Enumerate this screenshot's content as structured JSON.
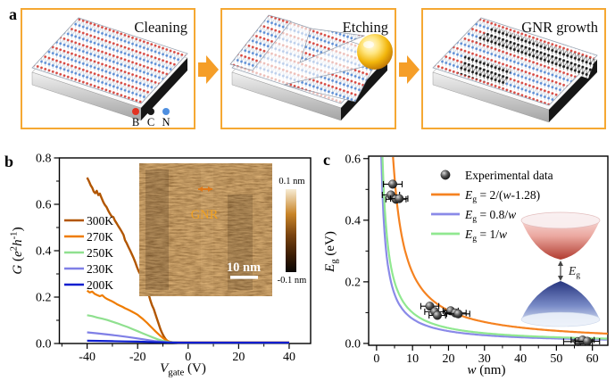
{
  "panel_a": {
    "label": "a",
    "border_color": "#f5a833",
    "arrow_color": "#f59e28",
    "steps": [
      {
        "title": "Cleaning"
      },
      {
        "title": "Etching"
      },
      {
        "title": "GNR growth"
      }
    ],
    "atom_legend": [
      {
        "label": "B",
        "color": "#e23222"
      },
      {
        "label": "C",
        "color": "#181818"
      },
      {
        "label": "N",
        "color": "#4f8fe0"
      }
    ]
  },
  "chart_data": [
    {
      "id": "panel_b",
      "type": "line",
      "panel_label": "b",
      "xlabel_parts": [
        {
          "t": "V",
          "i": 1
        },
        {
          "t": "gate",
          "sub": 1
        },
        {
          "t": " (V)"
        }
      ],
      "ylabel_parts": [
        {
          "t": "G",
          "i": 1
        },
        {
          "t": " ("
        },
        {
          "t": "e",
          "i": 1
        },
        {
          "t": "2",
          "sup": 1
        },
        {
          "t": "h",
          "i": 1
        },
        {
          "t": "-1",
          "sup": 1
        },
        {
          "t": ")"
        }
      ],
      "xlim": [
        -51,
        48.5
      ],
      "ylim": [
        0,
        0.8
      ],
      "xticks": [
        {
          "v": -40,
          "label": "-40"
        },
        {
          "v": -20,
          "label": "-20"
        },
        {
          "v": 0,
          "label": "0"
        },
        {
          "v": 20,
          "label": "20"
        },
        {
          "v": 40,
          "label": "40"
        }
      ],
      "yticks": [
        {
          "v": 0,
          "label": "0.0"
        },
        {
          "v": 0.2,
          "label": "0.2"
        },
        {
          "v": 0.4,
          "label": "0.4"
        },
        {
          "v": 0.6,
          "label": "0.6"
        },
        {
          "v": 0.8,
          "label": "0.8"
        }
      ],
      "x_minor_step": 10,
      "y_minor_step": 0.1,
      "series": [
        {
          "name": "300K",
          "color": "#b25600",
          "width": 2.4,
          "points": [
            [
              -40,
              0.715
            ],
            [
              -39.3,
              0.7
            ],
            [
              -38.6,
              0.682
            ],
            [
              -38,
              0.672
            ],
            [
              -37.4,
              0.655
            ],
            [
              -36.8,
              0.648
            ],
            [
              -36.2,
              0.658
            ],
            [
              -35.6,
              0.64
            ],
            [
              -35,
              0.646
            ],
            [
              -34.3,
              0.628
            ],
            [
              -33.6,
              0.61
            ],
            [
              -33,
              0.598
            ],
            [
              -32.3,
              0.588
            ],
            [
              -31.6,
              0.572
            ],
            [
              -31,
              0.56
            ],
            [
              -30.3,
              0.548
            ],
            [
              -29.6,
              0.545
            ],
            [
              -29,
              0.53
            ],
            [
              -28.3,
              0.518
            ],
            [
              -27.6,
              0.505
            ],
            [
              -27,
              0.495
            ],
            [
              -26.3,
              0.482
            ],
            [
              -25.6,
              0.468
            ],
            [
              -25,
              0.445
            ],
            [
              -24.3,
              0.432
            ],
            [
              -23.6,
              0.415
            ],
            [
              -23,
              0.402
            ],
            [
              -22.3,
              0.385
            ],
            [
              -21.6,
              0.368
            ],
            [
              -21,
              0.352
            ],
            [
              -20.3,
              0.33
            ],
            [
              -19.6,
              0.312
            ],
            [
              -19,
              0.3
            ],
            [
              -18.3,
              0.282
            ],
            [
              -17.6,
              0.262
            ],
            [
              -17,
              0.246
            ],
            [
              -16.3,
              0.23
            ],
            [
              -15.6,
              0.21
            ],
            [
              -15,
              0.188
            ],
            [
              -14.3,
              0.165
            ],
            [
              -13.6,
              0.148
            ],
            [
              -13,
              0.128
            ],
            [
              -12.3,
              0.105
            ],
            [
              -11.6,
              0.082
            ],
            [
              -11,
              0.062
            ],
            [
              -10.3,
              0.045
            ],
            [
              -9.6,
              0.03
            ],
            [
              -9,
              0.02
            ],
            [
              -8.3,
              0.012
            ],
            [
              -7.6,
              0.008
            ],
            [
              -7,
              0.006
            ],
            [
              -6,
              0.005
            ],
            [
              -4,
              0.004
            ],
            [
              0,
              0.004
            ],
            [
              10,
              0.004
            ],
            [
              20,
              0.004
            ],
            [
              30,
              0.004
            ],
            [
              40,
              0.004
            ]
          ]
        },
        {
          "name": "270K",
          "color": "#ef7c00",
          "width": 2.2,
          "points": [
            [
              -40,
              0.228
            ],
            [
              -39,
              0.22
            ],
            [
              -38,
              0.224
            ],
            [
              -37,
              0.214
            ],
            [
              -36,
              0.209
            ],
            [
              -35,
              0.204
            ],
            [
              -34,
              0.208
            ],
            [
              -33,
              0.198
            ],
            [
              -32,
              0.191
            ],
            [
              -31,
              0.186
            ],
            [
              -30,
              0.181
            ],
            [
              -29,
              0.175
            ],
            [
              -28,
              0.168
            ],
            [
              -27,
              0.163
            ],
            [
              -26,
              0.158
            ],
            [
              -25,
              0.152
            ],
            [
              -24,
              0.147
            ],
            [
              -23,
              0.142
            ],
            [
              -22,
              0.136
            ],
            [
              -21,
              0.13
            ],
            [
              -20,
              0.124
            ],
            [
              -19,
              0.115
            ],
            [
              -18,
              0.106
            ],
            [
              -17,
              0.096
            ],
            [
              -16,
              0.086
            ],
            [
              -15,
              0.075
            ],
            [
              -14,
              0.064
            ],
            [
              -13,
              0.053
            ],
            [
              -12,
              0.043
            ],
            [
              -11,
              0.033
            ],
            [
              -10,
              0.024
            ],
            [
              -9,
              0.016
            ],
            [
              -8,
              0.01
            ],
            [
              -7,
              0.007
            ],
            [
              -6,
              0.005
            ],
            [
              -4,
              0.004
            ],
            [
              0,
              0.004
            ],
            [
              20,
              0.004
            ],
            [
              40,
              0.004
            ]
          ]
        },
        {
          "name": "250K",
          "color": "#8fe08f",
          "width": 2.2,
          "points": [
            [
              -40,
              0.122
            ],
            [
              -38,
              0.118
            ],
            [
              -36,
              0.112
            ],
            [
              -34,
              0.107
            ],
            [
              -32,
              0.101
            ],
            [
              -30,
              0.094
            ],
            [
              -28,
              0.087
            ],
            [
              -26,
              0.079
            ],
            [
              -24,
              0.071
            ],
            [
              -22,
              0.062
            ],
            [
              -20,
              0.053
            ],
            [
              -18,
              0.044
            ],
            [
              -16,
              0.035
            ],
            [
              -14,
              0.026
            ],
            [
              -12,
              0.018
            ],
            [
              -10,
              0.011
            ],
            [
              -8,
              0.007
            ],
            [
              -6,
              0.005
            ],
            [
              -4,
              0.004
            ],
            [
              0,
              0.003
            ],
            [
              20,
              0.003
            ],
            [
              40,
              0.003
            ]
          ]
        },
        {
          "name": "230K",
          "color": "#7f7fe6",
          "width": 2.2,
          "points": [
            [
              -40,
              0.048
            ],
            [
              -36,
              0.044
            ],
            [
              -32,
              0.039
            ],
            [
              -28,
              0.034
            ],
            [
              -24,
              0.028
            ],
            [
              -20,
              0.022
            ],
            [
              -16,
              0.015
            ],
            [
              -13,
              0.01
            ],
            [
              -10,
              0.007
            ],
            [
              -8,
              0.005
            ],
            [
              -5,
              0.004
            ],
            [
              0,
              0.003
            ],
            [
              20,
              0.003
            ],
            [
              40,
              0.003
            ]
          ]
        },
        {
          "name": "200K",
          "color": "#0d1ecf",
          "width": 2.2,
          "points": [
            [
              -40,
              0.012
            ],
            [
              -35,
              0.011
            ],
            [
              -30,
              0.01
            ],
            [
              -25,
              0.009
            ],
            [
              -20,
              0.008
            ],
            [
              -15,
              0.006
            ],
            [
              -10,
              0.005
            ],
            [
              -5,
              0.004
            ],
            [
              0,
              0.004
            ],
            [
              20,
              0.004
            ],
            [
              40,
              0.004
            ]
          ]
        }
      ],
      "inset": {
        "gnr_label": "GNR",
        "gnr_color": "#f0a020",
        "scalebar_label": "10 nm",
        "colorbar_top": "0.1 nm",
        "colorbar_bottom": "-0.1 nm"
      }
    },
    {
      "id": "panel_c",
      "type": "scatter",
      "panel_label": "c",
      "xlabel_parts": [
        {
          "t": "w",
          "i": 1
        },
        {
          "t": " (nm)"
        }
      ],
      "ylabel_parts": [
        {
          "t": "E",
          "i": 1
        },
        {
          "t": "g",
          "sub": 1
        },
        {
          "t": " (eV)"
        }
      ],
      "xlim": [
        -2.2,
        64.3
      ],
      "ylim": [
        -0.006,
        0.608
      ],
      "xticks": [
        {
          "v": 0,
          "label": "0"
        },
        {
          "v": 10,
          "label": "10"
        },
        {
          "v": 20,
          "label": "20"
        },
        {
          "v": 30,
          "label": "30"
        },
        {
          "v": 40,
          "label": "40"
        },
        {
          "v": 50,
          "label": "50"
        },
        {
          "v": 60,
          "label": "60"
        }
      ],
      "yticks": [
        {
          "v": 0,
          "label": "0.0"
        },
        {
          "v": 0.2,
          "label": "0.2"
        },
        {
          "v": 0.4,
          "label": "0.4"
        },
        {
          "v": 0.6,
          "label": "0.6"
        }
      ],
      "x_minor_step": 5,
      "y_minor_step": 0.1,
      "points_legend_parts": [
        {
          "t": "Experimental data"
        }
      ],
      "points": [
        [
          4.5,
          0.517,
          2.6
        ],
        [
          4.0,
          0.482,
          2.4
        ],
        [
          5.4,
          0.468,
          2.8
        ],
        [
          6.3,
          0.47,
          2.4
        ],
        [
          14.8,
          0.121,
          2.5
        ],
        [
          16.2,
          0.103,
          2.8
        ],
        [
          16.9,
          0.091,
          2.3
        ],
        [
          20.6,
          0.106,
          2.1
        ],
        [
          21.9,
          0.099,
          3.0
        ],
        [
          22.7,
          0.096,
          3.2
        ],
        [
          56.0,
          0.006,
          4.0
        ],
        [
          57.3,
          0.011,
          3.2
        ],
        [
          58.6,
          0.007,
          3.4
        ]
      ],
      "curves": [
        {
          "num": 2,
          "shift": 1.28,
          "color": "#f58220",
          "label_parts": [
            {
              "t": "E",
              "i": 1
            },
            {
              "t": "g",
              "sub": 1
            },
            {
              "t": " = 2/("
            },
            {
              "t": "w",
              "i": 1
            },
            {
              "t": "-1.28"
            },
            {
              "t": ")"
            }
          ]
        },
        {
          "num": 0.8,
          "shift": 0,
          "color": "#8a8ae8",
          "label_parts": [
            {
              "t": "E",
              "i": 1
            },
            {
              "t": "g",
              "sub": 1
            },
            {
              "t": " = 0.8/"
            },
            {
              "t": "w",
              "i": 1
            }
          ]
        },
        {
          "num": 1,
          "shift": 0,
          "color": "#90e890",
          "label_parts": [
            {
              "t": "E",
              "i": 1
            },
            {
              "t": "g",
              "sub": 1
            },
            {
              "t": " = 1/"
            },
            {
              "t": "w",
              "i": 1
            }
          ]
        }
      ],
      "gap_label_parts": [
        {
          "t": "E",
          "i": 1
        },
        {
          "t": "g",
          "sub": 1
        }
      ]
    }
  ]
}
